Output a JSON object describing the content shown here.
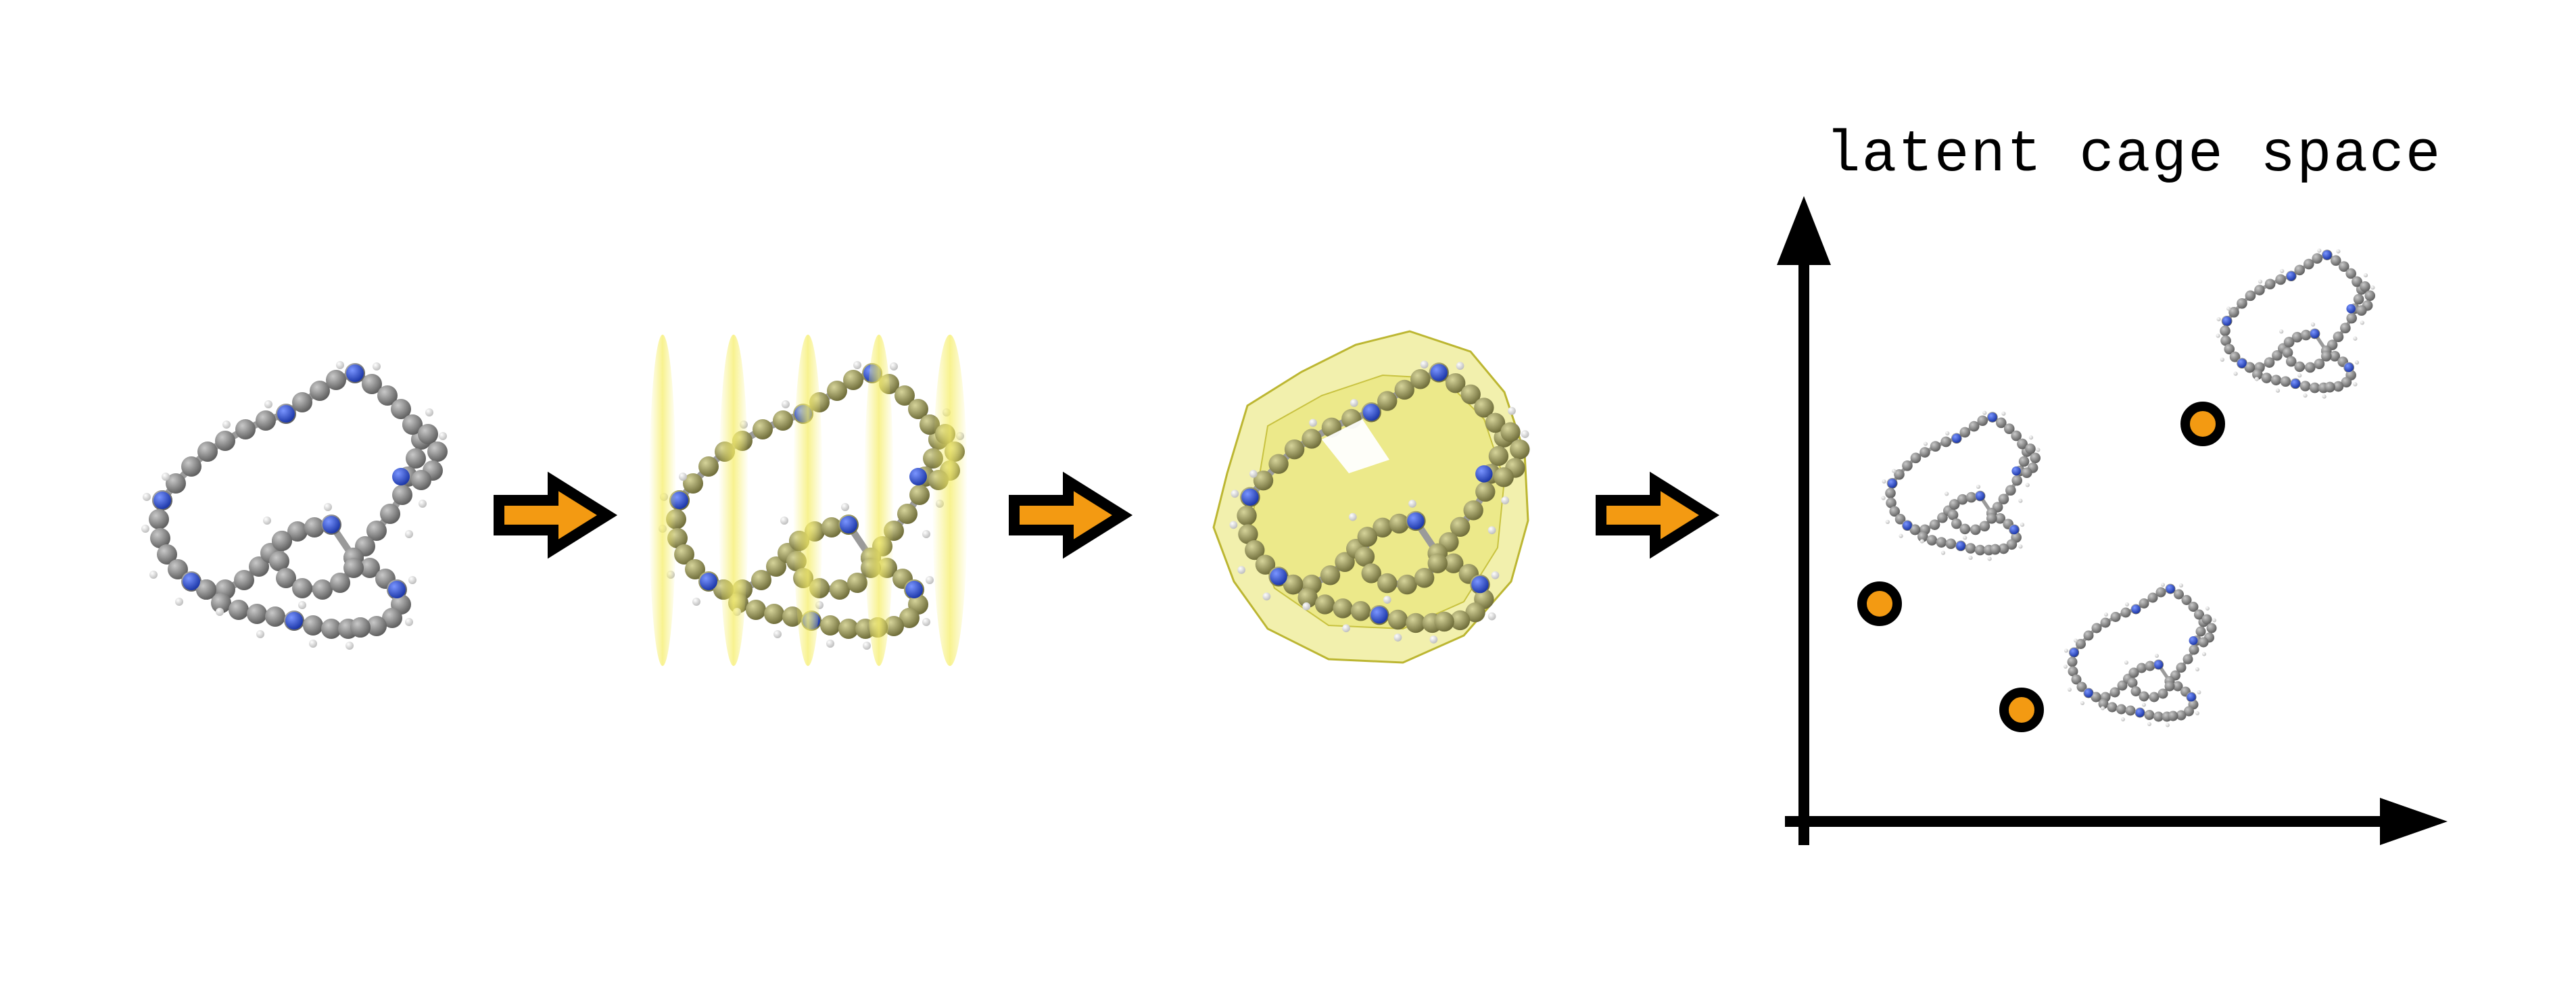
{
  "diagram": {
    "axis_title": "latent cage space",
    "colors": {
      "carbon": "#7d7d7d",
      "nitrogen": "#2a4fd6",
      "hydrogen": "#ececec",
      "bond": "#9a9a9a",
      "slice": "#f6ee6a",
      "envelope": "#e2dd4a",
      "arrow_fill": "#f39a12",
      "arrow_stroke": "#000000",
      "point_fill": "#f39a12",
      "axis": "#000000"
    },
    "stages": [
      {
        "name": "molecular-cage"
      },
      {
        "name": "sliced-cage"
      },
      {
        "name": "voxelized-cage"
      },
      {
        "name": "latent-space-embedding"
      }
    ],
    "latent_points": 3,
    "icons": [
      "right-arrow-icon",
      "right-arrow-icon",
      "right-arrow-icon"
    ]
  }
}
